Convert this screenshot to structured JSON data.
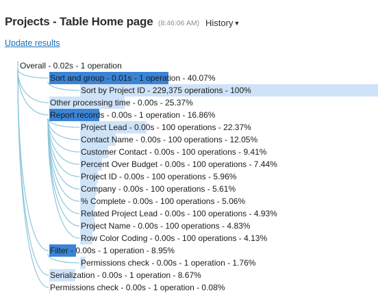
{
  "header": {
    "title": "Projects - Table Home page",
    "time": "(8:46:06 AM)",
    "history_label": "History",
    "update_link": "Update results"
  },
  "colors": {
    "bar_dark": "#3a84d6",
    "bar_light": "#cfe3f8",
    "tree_line": "#8cc6dc",
    "link": "#1a6fb8"
  },
  "tree": [
    {
      "label": "Overall - 0.02s - 1 operation",
      "depth": 0,
      "percent": 0,
      "style": "none"
    },
    {
      "label": "Sort and group - 0.01s - 1 operation - 40.07%",
      "depth": 1,
      "percent": 40.07,
      "style": "dark"
    },
    {
      "label": "Sort by Project ID - 229,375 operations - 100%",
      "depth": 2,
      "percent": 100,
      "style": "light"
    },
    {
      "label": "Other processing time - 0.00s - 25.37%",
      "depth": 1,
      "percent": 25.37,
      "style": "light"
    },
    {
      "label": "Report records - 0.00s - 1 operation - 16.86%",
      "depth": 1,
      "percent": 16.86,
      "style": "dark"
    },
    {
      "label": "Project Lead - 0.00s - 100 operations - 22.37%",
      "depth": 2,
      "percent": 22.37,
      "style": "light"
    },
    {
      "label": "Contact Name - 0.00s - 100 operations - 12.05%",
      "depth": 2,
      "percent": 12.05,
      "style": "light"
    },
    {
      "label": "Customer Contact - 0.00s - 100 operations - 9.41%",
      "depth": 2,
      "percent": 9.41,
      "style": "light"
    },
    {
      "label": "Percent Over Budget - 0.00s - 100 operations - 7.44%",
      "depth": 2,
      "percent": 7.44,
      "style": "light"
    },
    {
      "label": "Project ID - 0.00s - 100 operations - 5.96%",
      "depth": 2,
      "percent": 5.96,
      "style": "light"
    },
    {
      "label": "Company - 0.00s - 100 operations - 5.61%",
      "depth": 2,
      "percent": 5.61,
      "style": "light"
    },
    {
      "label": "% Complete - 0.00s - 100 operations - 5.06%",
      "depth": 2,
      "percent": 5.06,
      "style": "light"
    },
    {
      "label": "Related Project Lead - 0.00s - 100 operations - 4.93%",
      "depth": 2,
      "percent": 4.93,
      "style": "light"
    },
    {
      "label": "Project Name - 0.00s - 100 operations - 4.83%",
      "depth": 2,
      "percent": 4.83,
      "style": "light"
    },
    {
      "label": "Row Color Coding - 0.00s - 100 operations - 4.13%",
      "depth": 2,
      "percent": 4.13,
      "style": "light"
    },
    {
      "label": "Filter - 0.00s - 1 operation - 8.95%",
      "depth": 1,
      "percent": 8.95,
      "style": "dark"
    },
    {
      "label": "Permissions check - 0.00s - 1 operation - 1.76%",
      "depth": 2,
      "percent": 1.76,
      "style": "light"
    },
    {
      "label": "Serialization - 0.00s - 1 operation - 8.67%",
      "depth": 1,
      "percent": 8.67,
      "style": "light"
    },
    {
      "label": "Permissions check - 0.00s - 1 operation - 0.08%",
      "depth": 1,
      "percent": 0.08,
      "style": "light"
    }
  ]
}
